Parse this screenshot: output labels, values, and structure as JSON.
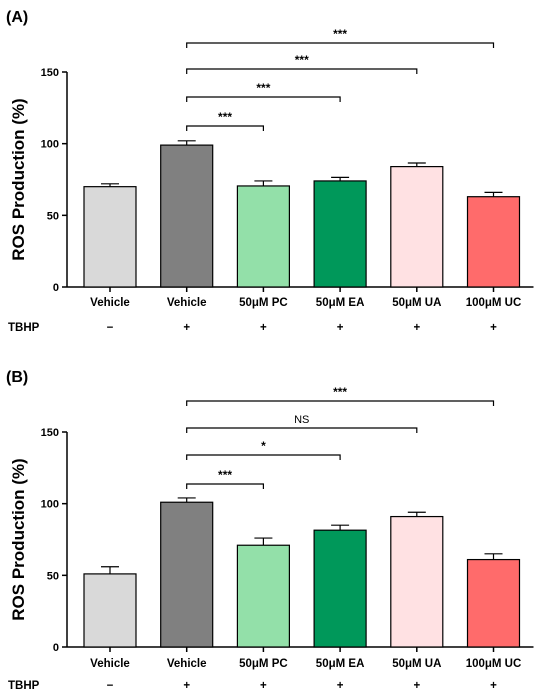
{
  "chart_data": [
    {
      "type": "bar",
      "panel_label": "(A)",
      "ylabel": "ROS Production (%)",
      "ylim": [
        0,
        150
      ],
      "yticks": [
        0,
        50,
        100,
        150
      ],
      "categories": [
        "Vehicle",
        "Vehicle",
        "50μM PC",
        "50μM EA",
        "50μM UA",
        "100μM UC"
      ],
      "values": [
        70,
        99,
        70.5,
        74,
        84,
        63
      ],
      "errors": [
        2,
        3,
        3.5,
        2.5,
        2.5,
        3
      ],
      "colors": [
        "#d9d9d9",
        "#808080",
        "#93e0a9",
        "#00985a",
        "#ffe1e3",
        "#ff6b6b"
      ],
      "treatment": {
        "label": "TBHP",
        "values": [
          "−",
          "+",
          "+",
          "+",
          "+",
          "+"
        ]
      },
      "comparisons": [
        {
          "from": 1,
          "to": 2,
          "label": "***",
          "level": 0
        },
        {
          "from": 1,
          "to": 3,
          "label": "***",
          "level": 1
        },
        {
          "from": 1,
          "to": 4,
          "label": "***",
          "level": 2
        },
        {
          "from": 1,
          "to": 5,
          "label": "***",
          "level": 3
        }
      ]
    },
    {
      "type": "bar",
      "panel_label": "(B)",
      "ylabel": "ROS Production (%)",
      "ylim": [
        0,
        150
      ],
      "yticks": [
        0,
        50,
        100,
        150
      ],
      "categories": [
        "Vehicle",
        "Vehicle",
        "50μM PC",
        "50μM EA",
        "50μM UA",
        "100μM UC"
      ],
      "values": [
        51,
        101,
        71,
        81.5,
        91,
        61
      ],
      "errors": [
        5,
        3,
        5,
        3.5,
        3,
        4
      ],
      "colors": [
        "#d9d9d9",
        "#808080",
        "#93e0a9",
        "#00985a",
        "#ffe1e3",
        "#ff6b6b"
      ],
      "treatment": {
        "label": "TBHP",
        "values": [
          "−",
          "+",
          "+",
          "+",
          "+",
          "+"
        ]
      },
      "comparisons": [
        {
          "from": 1,
          "to": 2,
          "label": "***",
          "level": 0
        },
        {
          "from": 1,
          "to": 3,
          "label": "*",
          "level": 1
        },
        {
          "from": 1,
          "to": 4,
          "label": "NS",
          "level": 2
        },
        {
          "from": 1,
          "to": 5,
          "label": "***",
          "level": 3
        }
      ]
    }
  ]
}
